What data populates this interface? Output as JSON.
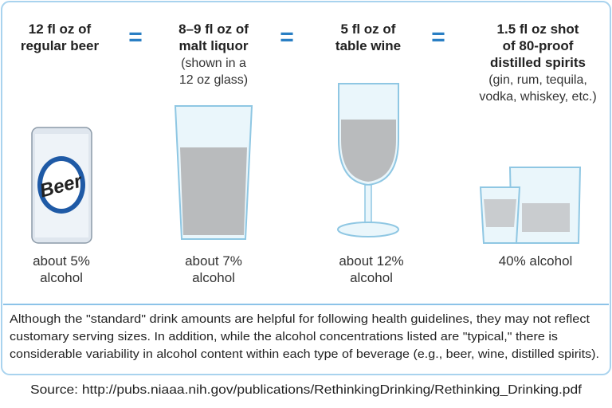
{
  "drinks": [
    {
      "title": [
        "12 fl oz of",
        "regular beer"
      ],
      "label": "Beer",
      "alcohol": [
        "about 5%",
        "alcohol"
      ]
    },
    {
      "title": [
        "8–9 fl oz of",
        "malt liquor"
      ],
      "note": [
        "(shown in a",
        "12 oz glass)"
      ],
      "alcohol": [
        "about 7%",
        "alcohol"
      ]
    },
    {
      "title": [
        "5 fl oz of",
        "table wine"
      ],
      "alcohol": [
        "about 12%",
        "alcohol"
      ]
    },
    {
      "title": [
        "1.5 fl oz shot",
        "of 80-proof",
        "distilled spirits"
      ],
      "note": [
        "(gin, rum, tequila,",
        "vodka, whiskey, etc.)"
      ],
      "alcohol": [
        "40% alcohol"
      ]
    }
  ],
  "equals": "=",
  "footnote": [
    "Although the \"standard\" drink amounts are helpful for following health guidelines, they may not reflect",
    "customary serving sizes. In addition, while the alcohol concentrations listed are \"typical,\" there is",
    "considerable variability in alcohol content within each type of beverage (e.g., beer, wine, distilled spirits)."
  ],
  "source": "Source: http://pubs.niaaa.nih.gov/publications/RethinkingDrinking/Rethinking_Drinking.pdf"
}
